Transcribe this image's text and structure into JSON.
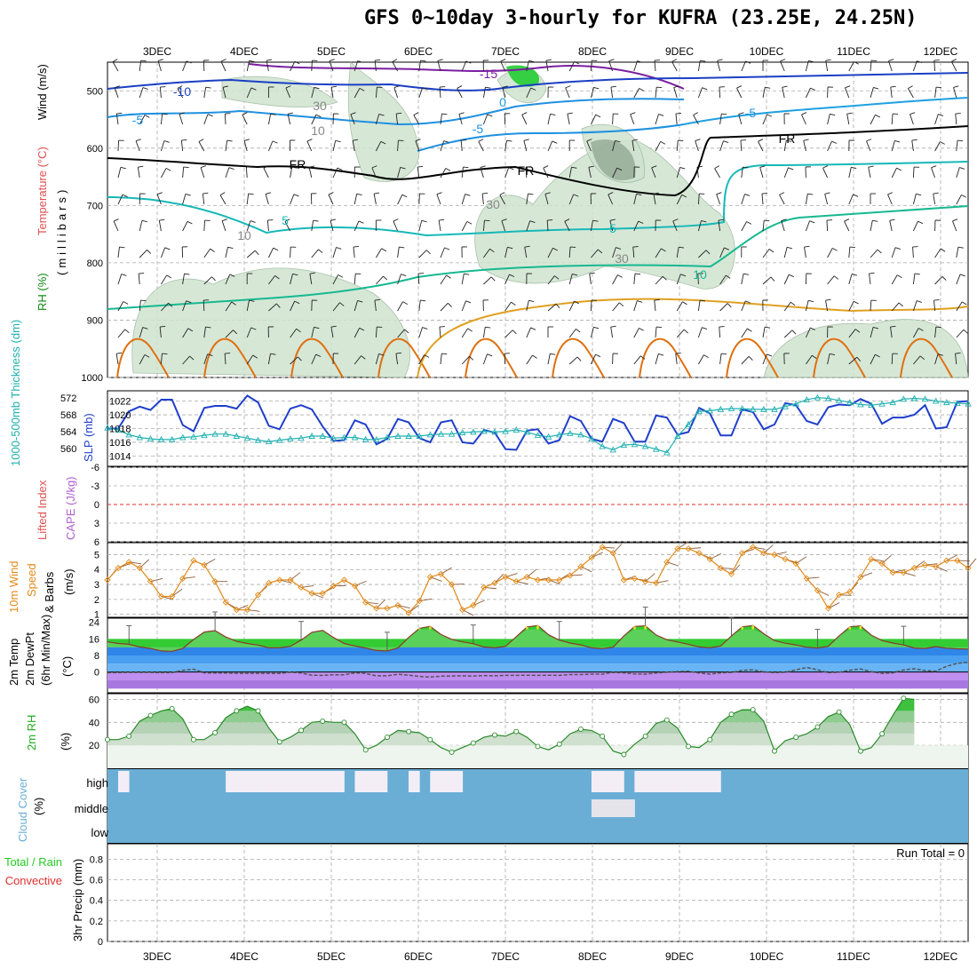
{
  "title": "GFS 0~10day 3-hourly for KUFRA (23.25E, 24.25N)",
  "colors": {
    "temp_neg15": "#7b1fa2",
    "temp_neg10": "#1a3fc4",
    "temp_neg5": "#1e90e0",
    "temp_0": "#1ea0e0",
    "temp_pos5": "#17b8b8",
    "temp_pos10": "#16b890",
    "temp_warm": "#e0a020",
    "temp_hot": "#e07010",
    "freezing": "#000000",
    "rh_fill": "#cfe3cf",
    "rh_dark": "#8aa08a",
    "slp": "#1f3fcc",
    "thickness": "#20b0b0",
    "wind_speed": "#e08a1a",
    "dewpoint": "#555555",
    "rh2m": "#44bb44",
    "cloud": "#6aaed6",
    "cloud_clear": "#f3eef6",
    "lifted_zero": "#e03030"
  },
  "chart_data": [
    {
      "panel": "upper-air",
      "type": "contour",
      "x_ticks": [
        "3DEC",
        "4DEC",
        "5DEC",
        "6DEC",
        "7DEC",
        "8DEC",
        "9DEC",
        "10DEC",
        "11DEC",
        "12DEC"
      ],
      "y_ticks": [
        "500",
        "600",
        "700",
        "800",
        "900",
        "1000"
      ],
      "ylim": [
        1000,
        450
      ],
      "labels": {
        "wind": "Wind (m/s)",
        "temperature": "Temperature (°C)",
        "rh": "RH (%)",
        "axis": "(millibars)"
      },
      "contour_labels": [
        "-15",
        "-10",
        "-5",
        "-5",
        "-5",
        "0",
        "FR",
        "FR",
        "FR",
        "5",
        "5",
        "10",
        "30",
        "30",
        "30",
        "10",
        "10"
      ]
    },
    {
      "panel": "pressure",
      "type": "line",
      "labels": {
        "thickness": "1000-500mb Thickness (dm)",
        "slp": "SLP (mb)"
      },
      "left_ticks": [
        "572",
        "568",
        "564",
        "560"
      ],
      "right_ticks": [
        "1022",
        "1020",
        "1018",
        "1016",
        "1014"
      ],
      "series": [
        {
          "values": [
            1018.0,
            1018.0,
            1020.5,
            1021.2,
            1020.7,
            1022.2,
            1022.2,
            1018.5,
            1017.6,
            1021.0,
            1021.3,
            1021.3,
            1020.9,
            1022.8,
            1021.8,
            1018.4,
            1017.9,
            1020.9,
            1021.4,
            1020.8,
            1018.3,
            1016.2,
            1016.3,
            1019.2,
            1018.6,
            1015.7,
            1016.5,
            1019.4,
            1018.9,
            1016.6,
            1016.0,
            1018.9,
            1019.2,
            1016.0,
            1015.8,
            1017.8,
            1017.4,
            1015.0,
            1014.9,
            1017.7,
            1017.9,
            1015.8,
            1016.3,
            1019.8,
            1019.1,
            1016.5,
            1016.1,
            1019.4,
            1018.8,
            1016.1,
            1016.1,
            1019.9,
            1019.6,
            1017.1,
            1017.5,
            1021.0,
            1020.2,
            1017.0,
            1017.0,
            1020.8,
            1020.4,
            1017.9,
            1018.6,
            1021.7,
            1021.4,
            1019.1,
            1018.6,
            1021.1,
            1021.5,
            1021.4,
            1022.3,
            1021.6,
            1018.7,
            1019.6,
            1019.6,
            1020.0,
            1021.4,
            1018.0,
            1018.2,
            1021.9,
            1022.0
          ]
        },
        {
          "values": [
            1018.1,
            1017.8,
            1017.1,
            1016.7,
            1016.5,
            1016.4,
            1016.4,
            1016.7,
            1016.8,
            1017.0,
            1017.2,
            1017.2,
            1016.9,
            1016.6,
            1016.3,
            1016.1,
            1016.3,
            1016.5,
            1016.6,
            1016.9,
            1016.9,
            1016.6,
            1016.7,
            1016.7,
            1016.4,
            1016.4,
            1016.7,
            1016.9,
            1016.9,
            1016.9,
            1017.1,
            1017.2,
            1017.2,
            1017.4,
            1017.5,
            1017.6,
            1017.5,
            1017.6,
            1017.8,
            1017.5,
            1017.0,
            1016.8,
            1017.1,
            1017.3,
            1017.1,
            1016.5,
            1015.4,
            1014.9,
            1015.6,
            1015.7,
            1015.4,
            1015.0,
            1014.5,
            1016.9,
            1018.6,
            1020.5,
            1020.6,
            1020.8,
            1020.9,
            1020.9,
            1020.8,
            1020.8,
            1020.8,
            1021.2,
            1021.6,
            1022.2,
            1022.5,
            1022.4,
            1022.1,
            1021.8,
            1021.5,
            1021.4,
            1021.6,
            1021.8,
            1022.3,
            1022.4,
            1022.3,
            1022.0,
            1021.8,
            1021.7,
            1021.6
          ]
        }
      ]
    },
    {
      "panel": "stability",
      "type": "line",
      "labels": {
        "li": "Lifted Index",
        "cape": "CAPE (J/kg)"
      },
      "y_ticks": [
        "-6",
        "-3",
        "0",
        "3",
        "6"
      ],
      "ylim": [
        6,
        -6
      ],
      "series": [
        {
          "values": []
        }
      ]
    },
    {
      "panel": "wind10m",
      "type": "line",
      "labels": {
        "main": "10m Wind",
        "sub": "Speed",
        "sub2": "& Barbs",
        "unit": "(m/s)"
      },
      "y_ticks": [
        "5",
        "4",
        "3",
        "2",
        "1"
      ],
      "ylim": [
        0.8,
        5.8
      ],
      "series": [
        {
          "values": [
            3.3,
            4.1,
            4.5,
            4.1,
            3.2,
            2.2,
            2.2,
            3.4,
            4.6,
            4.3,
            3.2,
            1.8,
            1.3,
            1.3,
            2.3,
            3.1,
            3.3,
            3.3,
            2.8,
            2.4,
            2.4,
            2.9,
            3.3,
            2.9,
            1.8,
            1.4,
            1.4,
            1.6,
            1.1,
            1.9,
            3.5,
            3.7,
            3.0,
            1.3,
            1.6,
            2.8,
            3.1,
            3.5,
            3.2,
            3.5,
            3.3,
            3.3,
            3.3,
            3.6,
            4.2,
            4.8,
            5.5,
            5.1,
            3.3,
            3.4,
            3.2,
            3.1,
            4.5,
            5.4,
            5.4,
            5.1,
            4.7,
            4.1,
            3.7,
            5.1,
            5.5,
            5.1,
            5.0,
            4.7,
            4.4,
            3.4,
            2.6,
            1.4,
            2.3,
            2.5,
            3.5,
            4.7,
            4.4,
            3.8,
            3.8,
            4.1,
            4.3,
            4.2,
            4.6,
            4.6,
            4.1
          ]
        }
      ]
    },
    {
      "panel": "temp2m",
      "type": "area",
      "labels": {
        "temp": "2m Temp",
        "dewpt": "2m DewPt",
        "minmax": "(6hr Min/Max)",
        "unit": "(°C)"
      },
      "y_ticks": [
        "24",
        "16",
        "8",
        "0"
      ],
      "ylim": [
        -10,
        26
      ],
      "series": [
        {
          "name": "2m Temp",
          "values": [
            14.6,
            13.8,
            13.4,
            12.1,
            11.4,
            10.2,
            10.0,
            11.4,
            15.7,
            19.3,
            20.0,
            16.9,
            14.8,
            13.8,
            13.0,
            11.7,
            11.7,
            12.4,
            15.4,
            19.2,
            20.1,
            16.7,
            13.8,
            12.6,
            11.6,
            10.4,
            10.2,
            11.6,
            16.7,
            21.1,
            22.0,
            18.1,
            15.8,
            14.6,
            13.7,
            12.1,
            11.7,
            12.4,
            17.1,
            21.7,
            22.5,
            18.0,
            15.4,
            14.0,
            13.1,
            11.7,
            11.3,
            12.0,
            17.4,
            22.0,
            22.3,
            17.9,
            15.6,
            14.5,
            13.4,
            12.1,
            11.7,
            12.6,
            17.4,
            21.8,
            22.5,
            18.5,
            15.2,
            13.9,
            13.1,
            12.0,
            11.6,
            12.4,
            17.4,
            21.8,
            22.3,
            17.8,
            15.2,
            14.0,
            13.1,
            11.6,
            11.4,
            12.3,
            11.5,
            11.2,
            11.1
          ]
        },
        {
          "name": "2m DewPt",
          "values": [
            -0.3,
            -0.3,
            -0.2,
            -0.2,
            -0.2,
            -0.3,
            -0.3,
            0.9,
            1.4,
            -0.4,
            -0.5,
            -0.5,
            -0.6,
            -0.6,
            -0.6,
            -0.7,
            -0.7,
            -0.1,
            -0.5,
            -1.5,
            -1.6,
            -1.3,
            -1.3,
            -0.4,
            -0.7,
            -1.8,
            -1.8,
            -1.1,
            -1.5,
            -2.1,
            -2.4,
            -2.0,
            -1.9,
            -1.8,
            -1.9,
            -1.7,
            -1.8,
            -1.6,
            -1.6,
            -1.5,
            -1.6,
            -1.5,
            -1.6,
            -1.2,
            -1.2,
            -1.0,
            -1.0,
            -0.2,
            -0.4,
            -0.9,
            -1.0,
            -0.5,
            -0.1,
            0.3,
            0.4,
            -0.5,
            -1.0,
            -0.4,
            -0.2,
            0.8,
            1.1,
            0.1,
            -0.3,
            -0.1,
            1.1,
            2.2,
            1.1,
            -0.3,
            -0.1,
            0.9,
            1.5,
            0.2,
            -0.7,
            -0.4,
            1.0,
            1.6,
            0.7,
            0.4,
            2.8,
            4.2,
            4.8
          ]
        }
      ]
    },
    {
      "panel": "rh2m",
      "type": "area",
      "labels": {
        "main": "2m RH",
        "unit": "(%)"
      },
      "y_ticks": [
        "60",
        "40",
        "20"
      ],
      "ylim": [
        0,
        65
      ],
      "series": [
        {
          "values": [
            25,
            25,
            28,
            41,
            46,
            50,
            52,
            43,
            25,
            25,
            31,
            44,
            50,
            54,
            50,
            35,
            23,
            27,
            33,
            40,
            41,
            40,
            40,
            30,
            16,
            20,
            27,
            33,
            32,
            31,
            25,
            18,
            14,
            18,
            22,
            27,
            29,
            28,
            32,
            27,
            19,
            16,
            21,
            30,
            34,
            33,
            28,
            15,
            12,
            21,
            28,
            39,
            42,
            35,
            19,
            18,
            25,
            40,
            47,
            51,
            51,
            41,
            15,
            24,
            27,
            30,
            36,
            45,
            49,
            38,
            15,
            18,
            30,
            46,
            61,
            60,
            0,
            0,
            0,
            0,
            0
          ]
        }
      ]
    },
    {
      "panel": "cloud",
      "type": "heatmap",
      "labels": {
        "main": "Cloud Cover",
        "unit": "(%)",
        "high": "high",
        "middle": "middle",
        "low": "low"
      },
      "high": [
        1,
        0,
        0,
        0,
        0,
        0,
        0,
        0,
        0,
        0,
        1,
        1,
        1,
        1,
        1,
        1,
        1,
        1,
        1,
        1,
        1,
        0,
        1,
        1,
        1,
        0,
        0,
        1,
        0,
        1,
        1,
        1,
        0,
        0,
        0,
        0,
        0,
        0,
        0,
        0,
        0,
        0,
        0,
        0,
        1,
        1,
        1,
        0,
        1,
        1,
        1,
        1,
        1,
        1,
        1,
        1
      ],
      "middle": [
        0,
        0,
        0,
        0,
        0,
        0,
        0,
        0,
        0,
        0,
        0,
        0,
        0,
        0,
        0,
        0,
        0,
        0,
        0,
        0,
        0,
        0,
        0,
        0,
        0,
        0,
        0,
        0,
        0,
        0,
        0,
        0,
        0,
        0,
        0,
        0,
        0,
        0,
        0,
        0,
        0,
        0,
        0,
        0,
        1,
        1,
        1,
        1,
        0,
        0,
        0,
        0,
        0,
        0,
        0,
        0
      ]
    },
    {
      "panel": "precip",
      "type": "bar",
      "labels": {
        "main": "3hr Precip (mm)",
        "total": "Total / Rain",
        "conv": "Convective"
      },
      "y_ticks": [
        "0.8",
        "0.6",
        "0.4",
        "0.2",
        "0"
      ],
      "ylim": [
        0,
        0.95
      ],
      "run_total": "Run Total = 0",
      "values": []
    }
  ]
}
